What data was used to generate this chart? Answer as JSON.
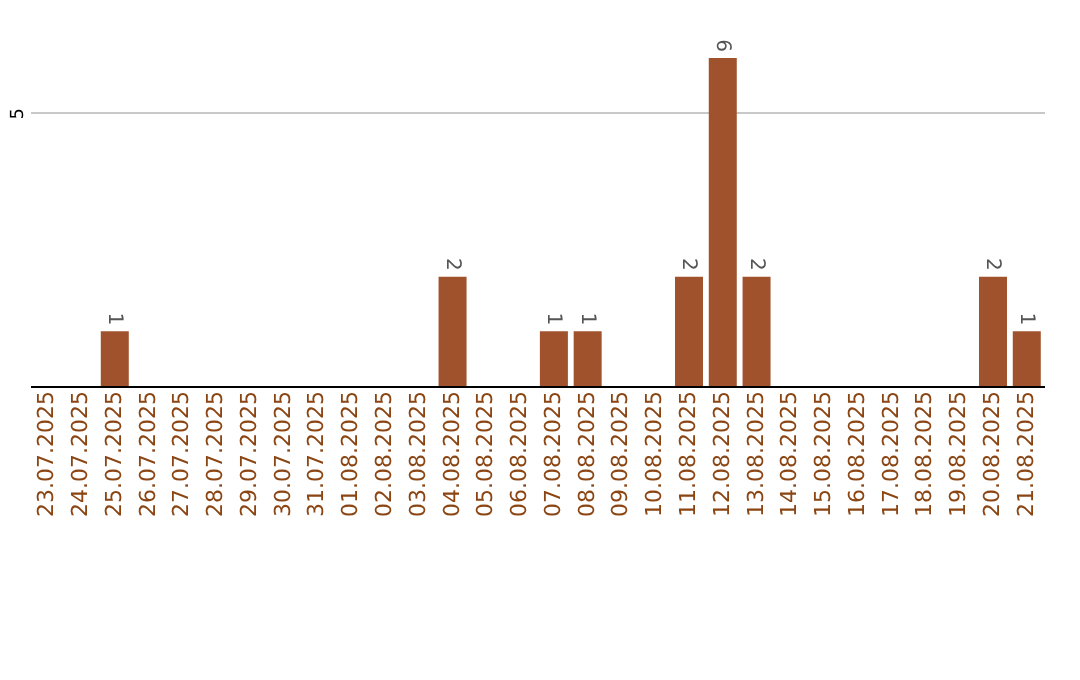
{
  "chart_data": {
    "type": "bar",
    "categories": [
      "23.07.2025",
      "24.07.2025",
      "25.07.2025",
      "26.07.2025",
      "27.07.2025",
      "28.07.2025",
      "29.07.2025",
      "30.07.2025",
      "31.07.2025",
      "01.08.2025",
      "02.08.2025",
      "03.08.2025",
      "04.08.2025",
      "05.08.2025",
      "06.08.2025",
      "07.08.2025",
      "08.08.2025",
      "09.08.2025",
      "10.08.2025",
      "11.08.2025",
      "12.08.2025",
      "13.08.2025",
      "14.08.2025",
      "15.08.2025",
      "16.08.2025",
      "17.08.2025",
      "18.08.2025",
      "19.08.2025",
      "20.08.2025",
      "21.08.2025"
    ],
    "values": [
      0,
      0,
      1,
      0,
      0,
      0,
      0,
      0,
      0,
      0,
      0,
      0,
      2,
      0,
      0,
      1,
      1,
      0,
      0,
      2,
      6,
      2,
      0,
      0,
      0,
      0,
      0,
      0,
      2,
      1
    ],
    "value_labels": [
      null,
      null,
      "1",
      null,
      null,
      null,
      null,
      null,
      null,
      null,
      null,
      null,
      "2",
      null,
      null,
      "1",
      "1",
      null,
      null,
      "2",
      "6",
      "2",
      null,
      null,
      null,
      null,
      null,
      null,
      "2",
      "1"
    ],
    "color": "#a0522d",
    "ylim": [
      0,
      6
    ],
    "yticks": [
      5
    ],
    "grid": "y"
  }
}
